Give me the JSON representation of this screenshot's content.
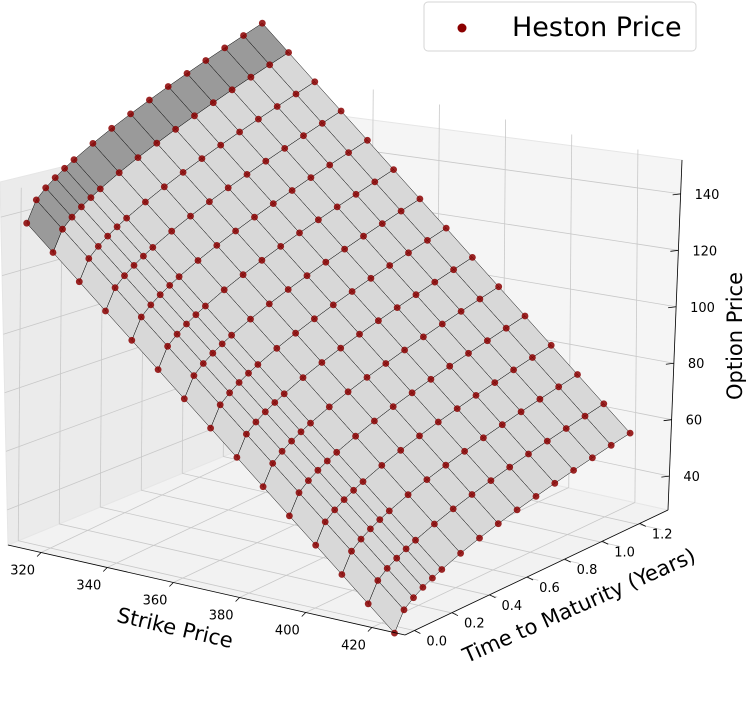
{
  "chart_data": {
    "type": "scatter",
    "subtype": "3d-surface-with-points",
    "title": "",
    "legend": {
      "entries": [
        "Heston Price"
      ],
      "placement": "top-right"
    },
    "xlabel": "Strike Price",
    "ylabel": "Time to Maturity (Years)",
    "zlabel": "Option Price",
    "xticks": [
      "320",
      "340",
      "360",
      "380",
      "400",
      "420"
    ],
    "yticks": [
      "0.0",
      "0.2",
      "0.4",
      "0.6",
      "0.8",
      "1.0",
      "1.2"
    ],
    "zticks": [
      "40",
      "60",
      "80",
      "100",
      "120",
      "140"
    ],
    "xlim": [
      310,
      430
    ],
    "ylim": [
      -0.05,
      1.35
    ],
    "zlim": [
      28,
      152
    ],
    "grid": true,
    "strikes": [
      312,
      320,
      328,
      336,
      344,
      352,
      360,
      368,
      376,
      384,
      392,
      400,
      408,
      416,
      424
    ],
    "maturities": [
      0.0,
      0.05,
      0.1,
      0.15,
      0.2,
      0.25,
      0.35,
      0.45,
      0.55,
      0.65,
      0.75,
      0.85,
      0.95,
      1.05,
      1.15,
      1.25
    ],
    "series": [
      {
        "name": "Heston Price",
        "marker_color": "#8b0000",
        "points_note": "Heston price sampled at every strike × maturity grid node",
        "approx_price_at_min_strike_min_maturity": 140,
        "approx_price_at_max_strike_min_maturity": 29,
        "approx_price_at_max_strike_max_maturity": 60
      }
    ],
    "surface_color": "#d8d8d8",
    "surface_edge_color": "#000000"
  }
}
